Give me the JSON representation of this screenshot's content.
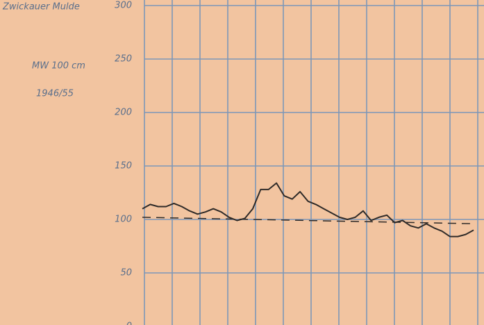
{
  "chart_data": {
    "type": "line",
    "title": "Zwickauer Mulde",
    "annotations": [
      "MW 100 cm",
      "1946/55"
    ],
    "values": [
      110,
      114,
      112,
      112,
      115,
      112,
      108,
      105,
      107,
      110,
      107,
      102,
      99,
      101,
      110,
      128,
      128,
      134,
      122,
      119,
      126,
      117,
      114,
      110,
      106,
      102,
      100,
      102,
      108,
      99,
      102,
      104,
      97,
      99,
      94,
      92,
      96,
      92,
      89,
      84,
      84,
      86,
      90
    ],
    "color": "#2e2a28",
    "mean_line": {
      "values": [
        102,
        96
      ],
      "color": "#2e2a28"
    },
    "ylim": [
      0,
      300
    ],
    "yticks": [
      0,
      50,
      100,
      150,
      200,
      250,
      300
    ],
    "grid": true
  }
}
